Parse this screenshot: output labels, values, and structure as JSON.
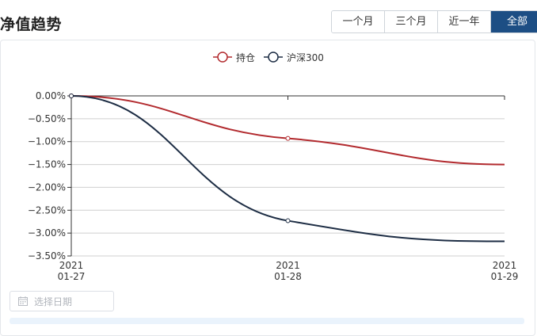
{
  "header": {
    "title": "净值趋势",
    "range_tabs": [
      {
        "label": "一个月"
      },
      {
        "label": "三个月"
      },
      {
        "label": "近一年"
      },
      {
        "label": "全部",
        "active": true
      }
    ]
  },
  "chart_data": {
    "type": "line",
    "title": "",
    "xlabel": "",
    "ylabel": "",
    "x": [
      "2021-01-27",
      "2021-01-28",
      "2021-01-29"
    ],
    "x_tick_labels": [
      [
        "2021",
        "01-27"
      ],
      [
        "2021",
        "01-28"
      ],
      [
        "2021",
        "01-29"
      ]
    ],
    "series": [
      {
        "name": "持仓",
        "color": "#b22a2e",
        "values": [
          0.0,
          -0.93,
          -1.5
        ]
      },
      {
        "name": "沪深300",
        "color": "#1d2d44",
        "values": [
          0.0,
          -2.73,
          -3.18
        ]
      }
    ],
    "ylim": [
      -3.5,
      0
    ],
    "y_ticks": [
      0,
      -0.5,
      -1.0,
      -1.5,
      -2.0,
      -2.5,
      -3.0,
      -3.5
    ],
    "y_tick_labels": [
      "0.00%",
      "−0.50%",
      "−1.00%",
      "−1.50%",
      "−2.00%",
      "−2.50%",
      "−3.00%",
      "−3.50%"
    ],
    "grid": true,
    "legend_position": "top-center"
  },
  "date_picker": {
    "placeholder": "选择日期",
    "icon": "calendar-icon"
  }
}
